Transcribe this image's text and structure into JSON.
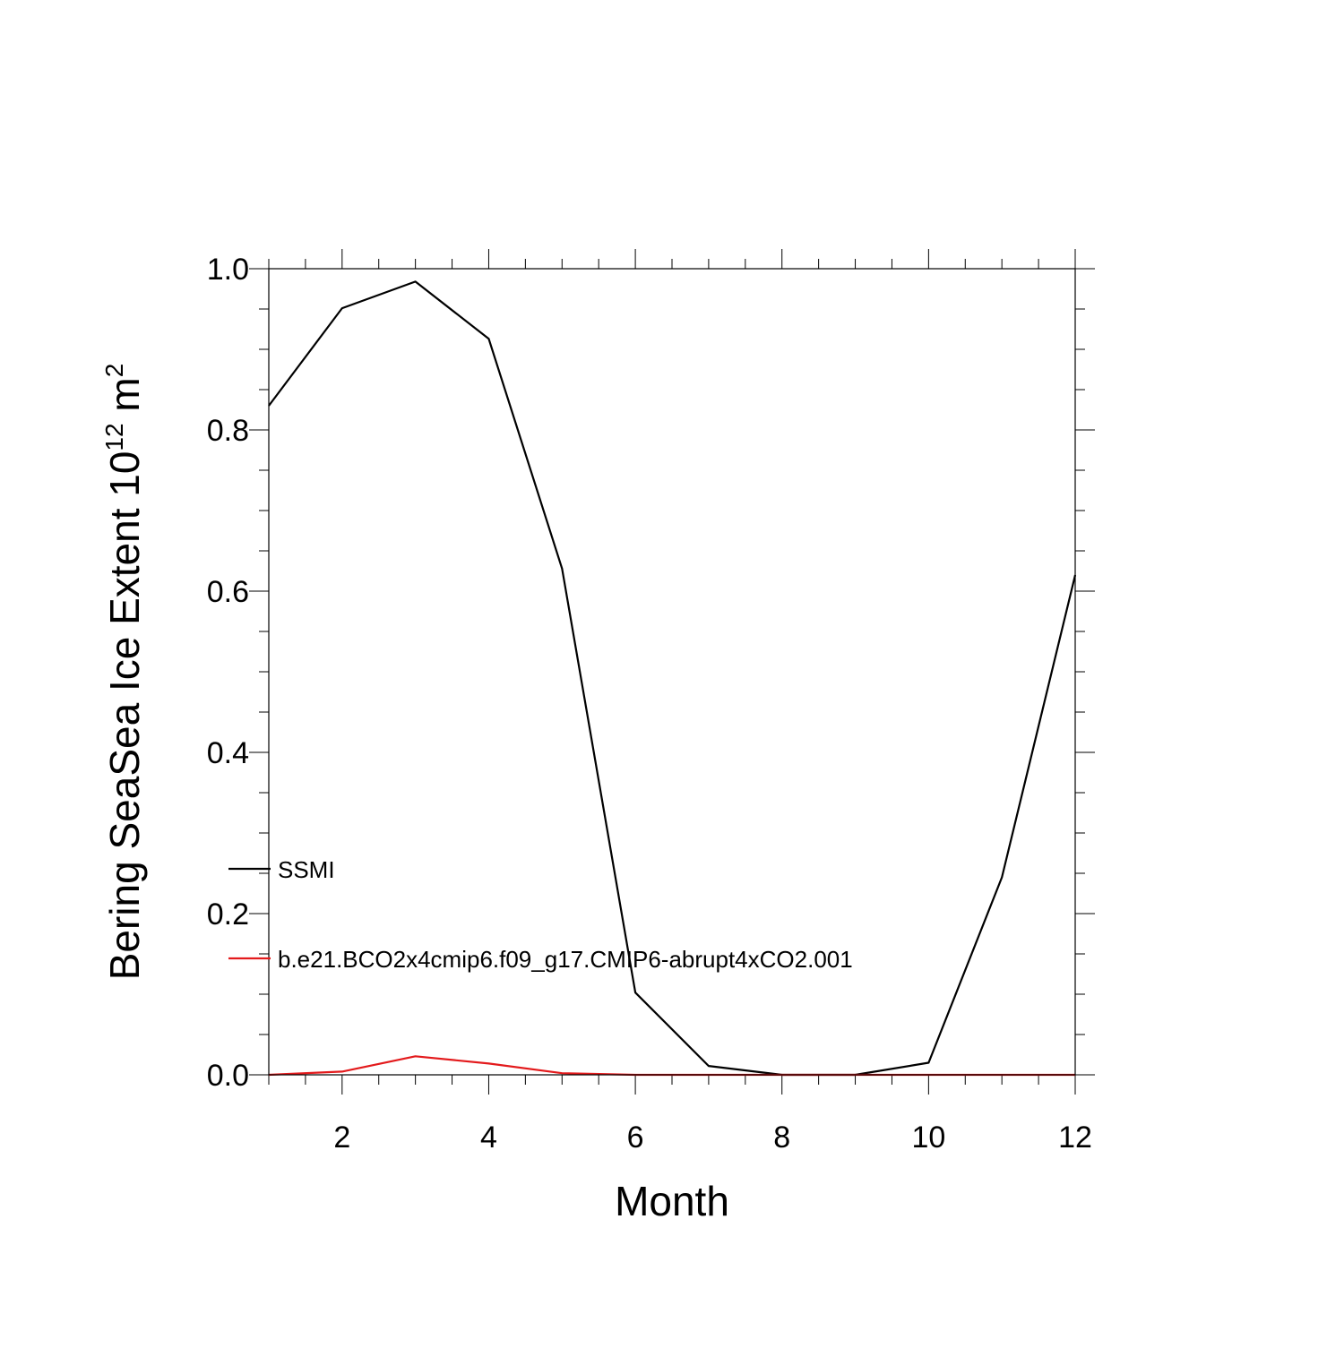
{
  "chart_data": {
    "type": "line",
    "title": "",
    "xlabel": "Month",
    "ylabel": {
      "main": "Bering SeaSea Ice Extent 10",
      "superscript": "12",
      "unit": " m",
      "unit_superscript": "2"
    },
    "xlim": [
      1,
      12
    ],
    "ylim": [
      0,
      1.0
    ],
    "x_ticks": [
      2,
      4,
      6,
      8,
      10,
      12
    ],
    "x_tick_labels": [
      "2",
      "4",
      "6",
      "8",
      "10",
      "12"
    ],
    "y_ticks": [
      0,
      0.2,
      0.4,
      0.6,
      0.8,
      1.0
    ],
    "y_tick_labels": [
      "0.0",
      "0.2",
      "0.4",
      "0.6",
      "0.8",
      "1.0"
    ],
    "grid": false,
    "legend_position": "left-inside-lower",
    "x": [
      1,
      2,
      3,
      4,
      5,
      6,
      7,
      8,
      9,
      10,
      11,
      12
    ],
    "series": [
      {
        "name": "SSMI",
        "color": "#000000",
        "values": [
          0.83,
          0.951,
          0.984,
          0.913,
          0.628,
          0.102,
          0.011,
          0.0,
          0.0,
          0.015,
          0.245,
          0.62
        ]
      },
      {
        "name": "b.e21.BCO2x4cmip6.f09_g17.CMIP6-abrupt4xCO2.001",
        "color": "#e31a1c",
        "values": [
          0.0,
          0.004,
          0.023,
          0.014,
          0.002,
          0.0,
          0.0,
          0.0,
          0.0,
          0.0,
          0.0,
          0.0
        ]
      }
    ]
  }
}
